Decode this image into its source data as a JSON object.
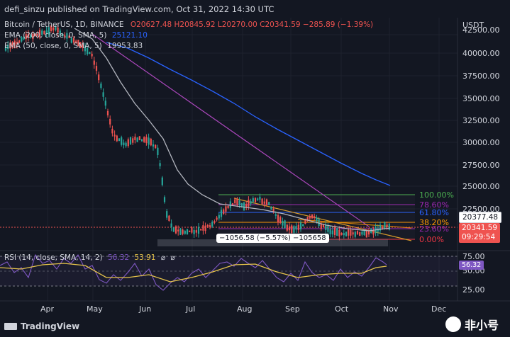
{
  "header": {
    "publisher": "defi_sinzu published on TradingView.com, Oct 31, 2022 14:30 UTC"
  },
  "legend": {
    "symbol": "Bitcoin / TetherUS, 1D, BINANCE",
    "ohlc": "O20627.48 H20845.92 L20270.00 C20341.59 −285.89 (−1.39%)",
    "ema200_label": "EMA (200, close, 0, SMA, 5)",
    "ema200_value": "25121.10",
    "ema50_label": "EMA (50, close, 0, SMA, 5)",
    "ema50_value": "19953.83"
  },
  "price_axis": {
    "currency": "USDT",
    "ticks": [
      "42500.00",
      "40000.00",
      "37500.00",
      "35000.00",
      "32500.00",
      "30000.00",
      "27500.00",
      "25000.00",
      "22500.00"
    ],
    "price_tag_1": "20377.48",
    "price_tag_2": "20341.59",
    "countdown": "09:29:54"
  },
  "fib_levels": [
    {
      "label": "100.00%",
      "color": "#4caf50"
    },
    {
      "label": "78.60%",
      "color": "#9c27b0"
    },
    {
      "label": "61.80%",
      "color": "#2962ff"
    },
    {
      "label": "38.20%",
      "color": "#ff9800"
    },
    {
      "label": "23.60%",
      "color": "#9c27b0"
    },
    {
      "label": "0.00%",
      "color": "#f23645"
    }
  ],
  "measure": {
    "text": "−1056.58 (−5.57%) −105658"
  },
  "rsi": {
    "label": "RSI (14, close, SMA, 14, 2)",
    "value_1": "56.32",
    "value_2": "53.91",
    "ticks": [
      "75.00",
      "50.00",
      "25.00"
    ]
  },
  "time_axis": {
    "labels": [
      "Apr",
      "May",
      "Jun",
      "Jul",
      "Aug",
      "Sep",
      "Oct",
      "Nov",
      "Dec"
    ]
  },
  "footer": {
    "brand": "TradingView",
    "watermark": "非小号"
  },
  "colors": {
    "up": "#26a69a",
    "down": "#ef5350",
    "ema200": "#2962ff",
    "ema50": "#b2b5be",
    "rsi": "#7e57c2",
    "rsi_ma": "#e5c34a"
  }
}
